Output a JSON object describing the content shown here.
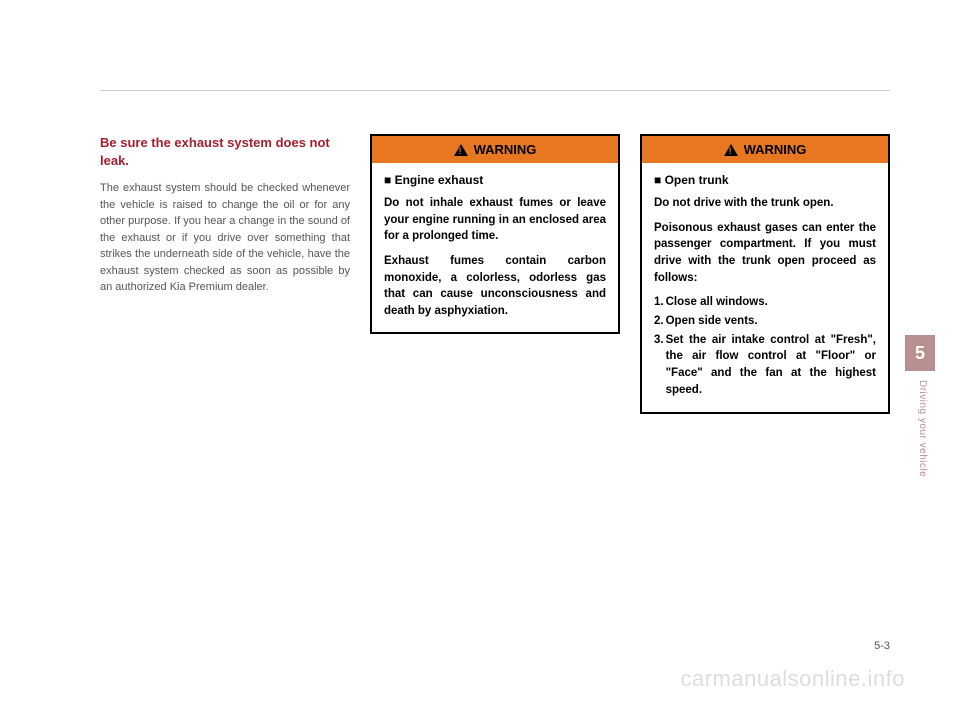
{
  "colors": {
    "heading": "#a02030",
    "body_text": "#555555",
    "warning_bg": "#e87722",
    "warning_text": "#000000",
    "tab_bg": "#b89090",
    "tab_text": "#ffffff",
    "watermark": "#dddddd",
    "divider": "#cccccc"
  },
  "left_column": {
    "heading": "Be sure the exhaust system does not leak.",
    "body": "The exhaust system should be checked whenever the vehicle is raised to change the oil or for any other purpose. If you hear a change in the sound of the exhaust or if you drive over something that strikes the underneath side of the vehicle, have the exhaust system checked as soon as possible by an authorized Kia Premium dealer."
  },
  "warning_label": "WARNING",
  "warning1": {
    "subtitle": "■ Engine exhaust",
    "para1": "Do not inhale exhaust fumes or leave your engine running in an enclosed area for a prolonged time.",
    "para2": "Exhaust fumes contain carbon monoxide, a colorless, odorless gas that can cause unconscious­ness and death by asphyxiation."
  },
  "warning2": {
    "subtitle": "■ Open trunk",
    "para1": "Do not drive with the trunk open.",
    "para2": "Poisonous exhaust gases can enter the passenger compart­ment. If you must drive with the trunk open proceed as follows:",
    "items": [
      {
        "num": "1.",
        "text": "Close all windows."
      },
      {
        "num": "2.",
        "text": "Open side vents."
      },
      {
        "num": "3.",
        "text": "Set the air intake control at \"Fresh\", the air flow control at \"Floor\" or \"Face\" and the fan at the highest speed."
      }
    ]
  },
  "side": {
    "chapter": "5",
    "label": "Driving your vehicle"
  },
  "page_number": "5-3",
  "watermark": "carmanualsonline.info"
}
